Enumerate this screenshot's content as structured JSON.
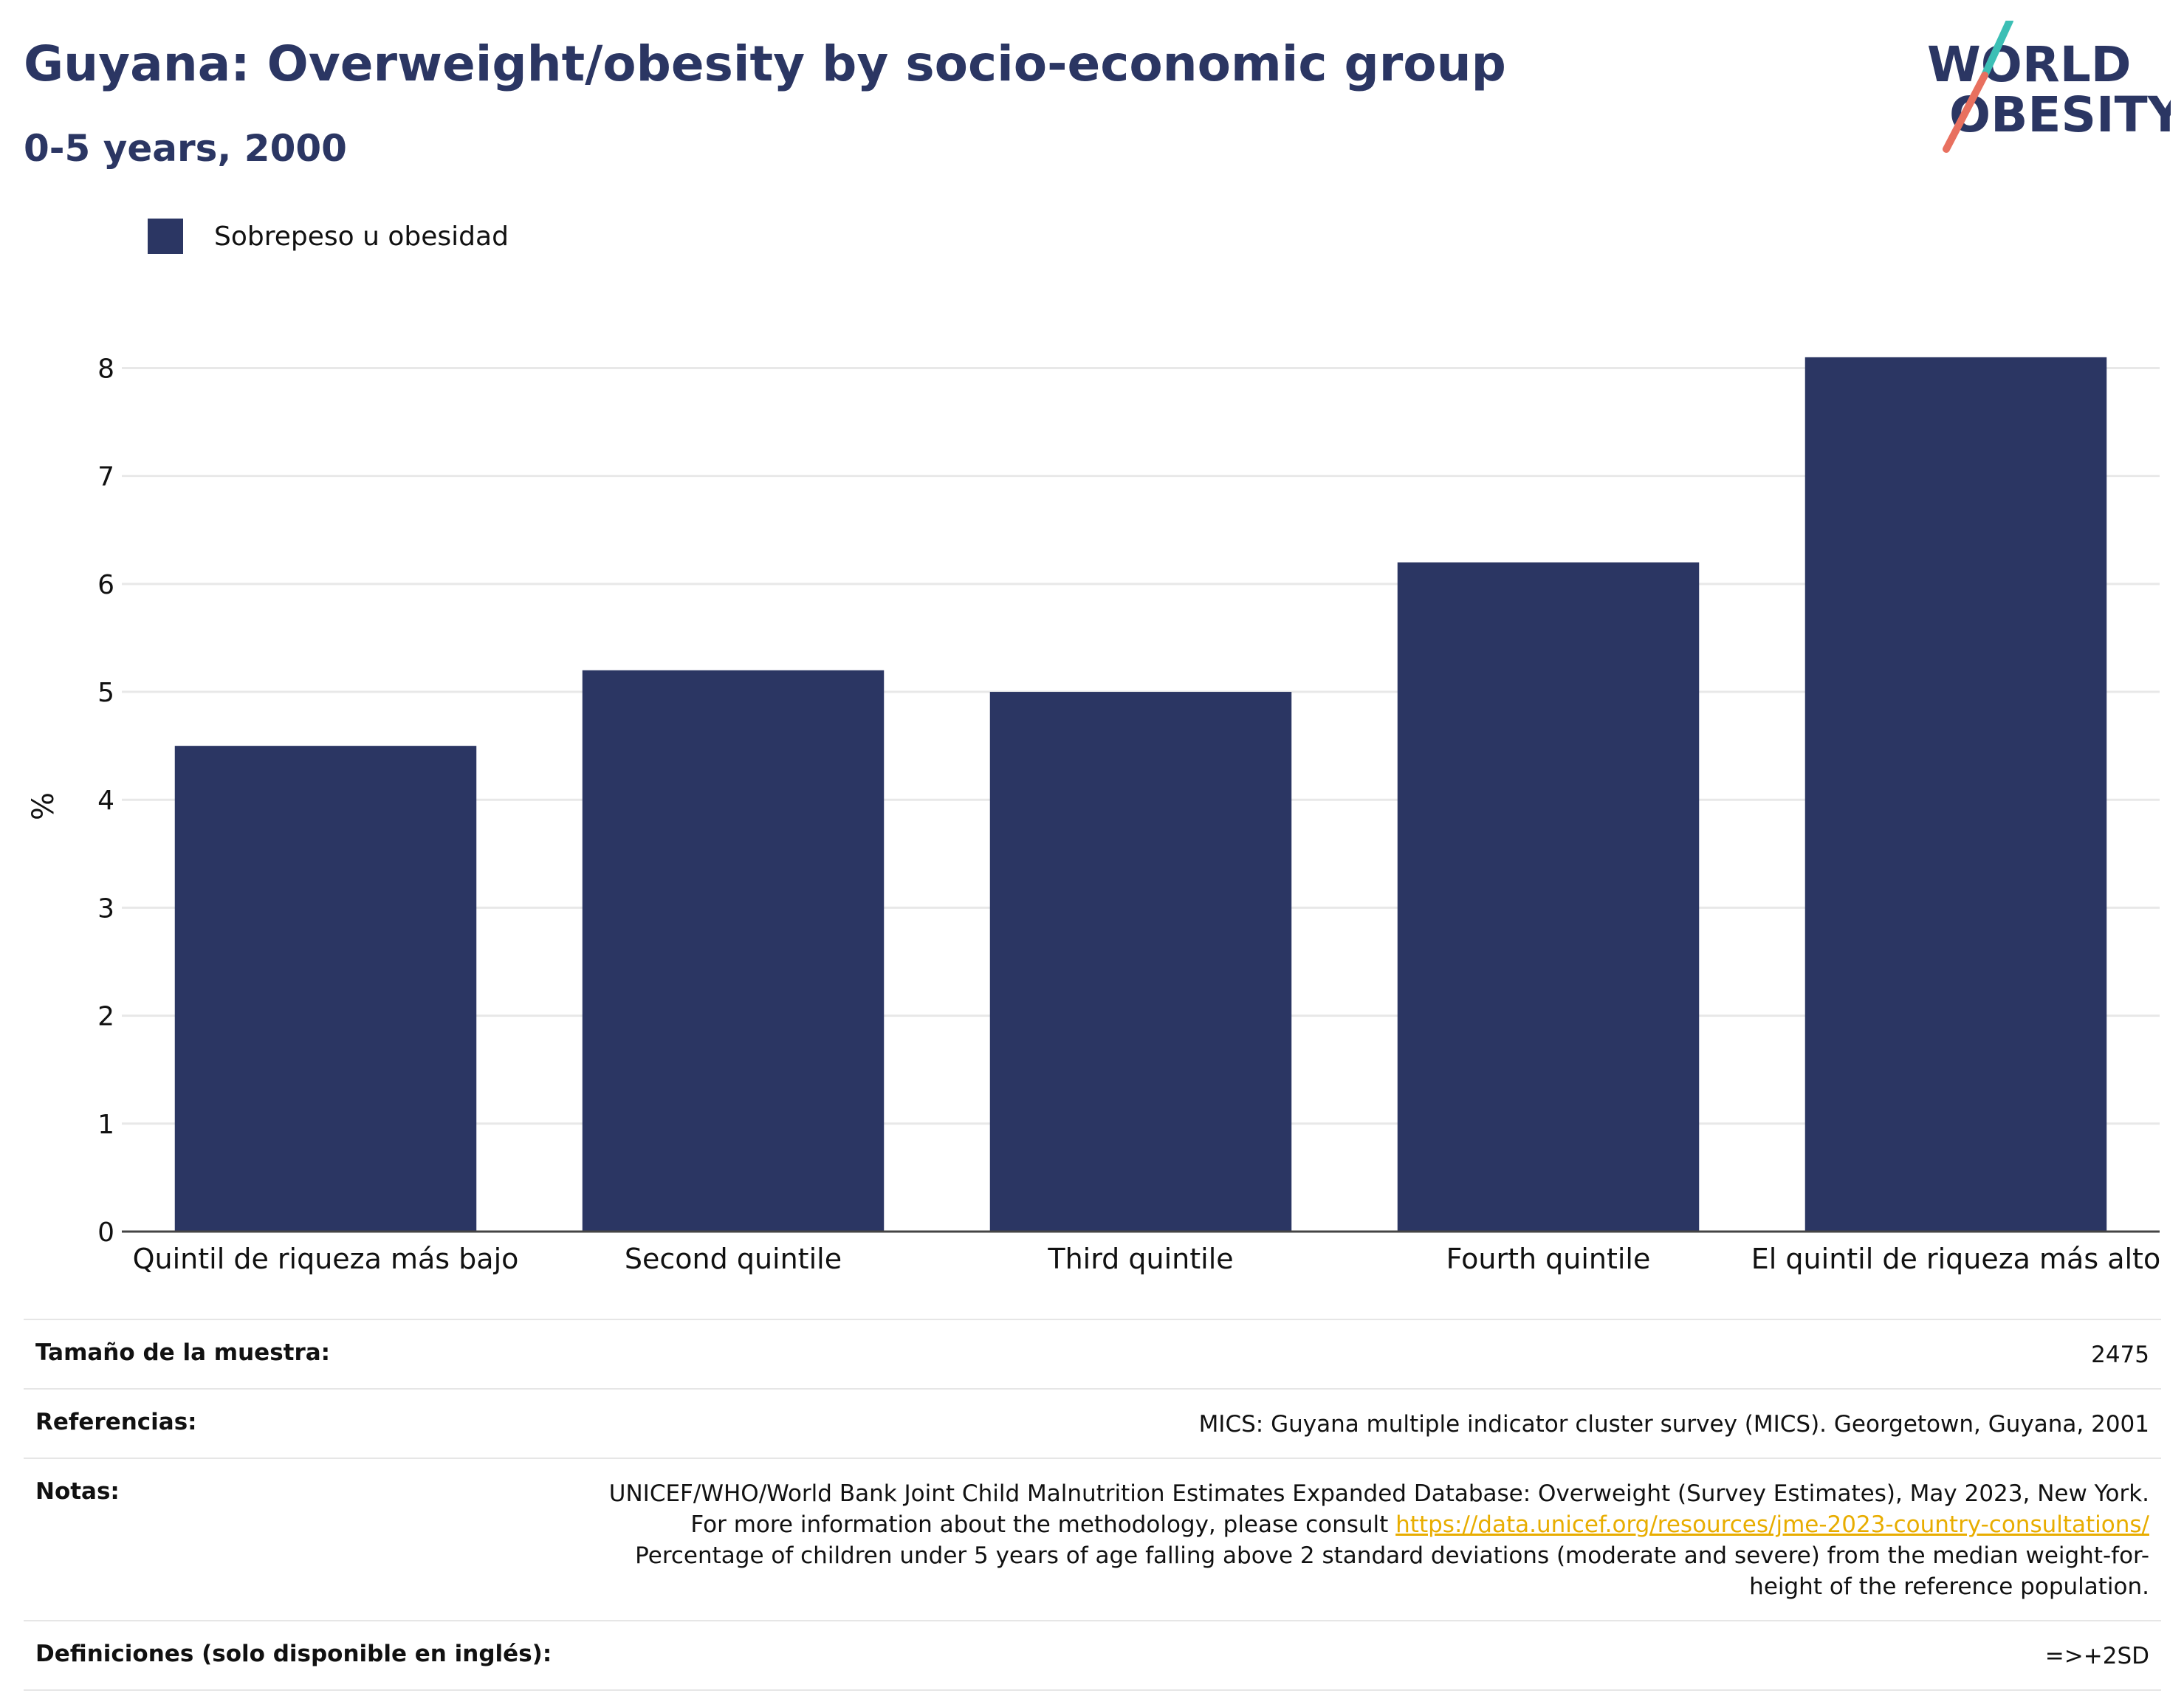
{
  "header": {
    "title": "Guyana: Overweight/obesity by socio-economic group",
    "subtitle": "0-5 years, 2000"
  },
  "logo": {
    "line1": "WORLD",
    "line2": "OBESITY",
    "colors": {
      "text": "#2b3663",
      "slash_top": "#3cbfb5",
      "slash_bottom": "#e8705f"
    }
  },
  "legend": {
    "label": "Sobrepeso u obesidad",
    "color": "#2b3663"
  },
  "chart_data": {
    "type": "bar",
    "categories": [
      "Quintil de riqueza más bajo",
      "Second quintile",
      "Third quintile",
      "Fourth quintile",
      "El quintil de riqueza más alto"
    ],
    "series": [
      {
        "name": "Sobrepeso u obesidad",
        "values": [
          4.5,
          5.2,
          5.0,
          6.2,
          8.1
        ],
        "color": "#2b3663"
      }
    ],
    "ylabel": "%",
    "yticks": [
      "0",
      "1",
      "2",
      "3",
      "4",
      "5",
      "6",
      "7",
      "8"
    ],
    "ylim": [
      0,
      8.4
    ],
    "grid": true,
    "legend_position": "top-left"
  },
  "info": {
    "sample_label": "Tamaño de la muestra:",
    "sample_value": "2475",
    "refs_label": "Referencias:",
    "refs_value": "MICS: Guyana multiple indicator cluster survey (MICS). Georgetown, Guyana, 2001",
    "notes_label": "Notas:",
    "notes_text1": "UNICEF/WHO/World Bank Joint Child Malnutrition Estimates Expanded Database: Overweight (Survey Estimates), May 2023, New York. For more information about the methodology, please consult ",
    "notes_link": "https://data.unicef.org/resources/jme-2023-country-consultations/",
    "notes_text2": "Percentage of children under 5 years of age falling above 2 standard deviations (moderate and severe) from the median weight-for-height of the reference population.",
    "defs_label": "Definiciones (solo disponible en inglés):",
    "defs_value": "=>+2SD"
  }
}
